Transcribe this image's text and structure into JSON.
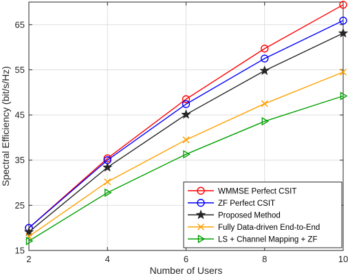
{
  "chart_data": {
    "type": "line",
    "xlabel": "Number of Users",
    "ylabel": "Spectral Efficiency (bit/s/Hz)",
    "x": [
      2,
      4,
      6,
      8,
      10
    ],
    "xlim": [
      2,
      10
    ],
    "ylim": [
      15,
      70
    ],
    "xticks": [
      "2",
      "4",
      "6",
      "8",
      "10"
    ],
    "yticks": [
      "15",
      "25",
      "35",
      "45",
      "55",
      "65"
    ],
    "grid": true,
    "legend_position": "bottom-right",
    "series": [
      {
        "name": "WMMSE Perfect CSIT",
        "values": [
          20.0,
          35.4,
          48.5,
          59.7,
          69.4
        ],
        "color": "#ff0000",
        "marker": "circle"
      },
      {
        "name": "ZF Perfect CSIT",
        "values": [
          20.0,
          35.0,
          47.4,
          57.5,
          65.9
        ],
        "color": "#0000ff",
        "marker": "circle"
      },
      {
        "name": "Proposed Method",
        "values": [
          19.1,
          33.4,
          45.1,
          54.8,
          63.1
        ],
        "color": "#262626",
        "marker": "star"
      },
      {
        "name": "Fully Data-driven End-to-End",
        "values": [
          18.1,
          30.2,
          39.5,
          47.5,
          54.5
        ],
        "color": "#ffa000",
        "marker": "x"
      },
      {
        "name": "LS + Channel Mapping + ZF",
        "values": [
          17.1,
          27.8,
          36.3,
          43.6,
          49.2
        ],
        "color": "#00a000",
        "marker": "triangle-right"
      }
    ]
  }
}
